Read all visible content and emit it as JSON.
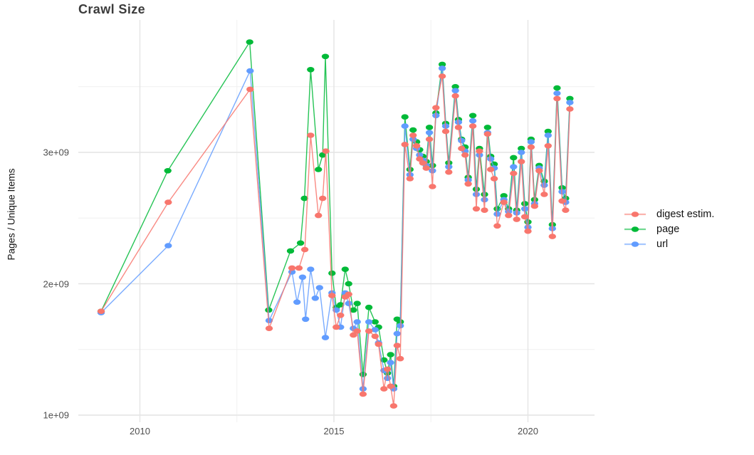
{
  "chart_data": {
    "type": "line",
    "title": "Crawl Size",
    "xlabel": "",
    "ylabel": "Pages / Unique Items",
    "values_scale": "1e9",
    "grid": true,
    "legend_position": "right",
    "xlim": [
      2008.4,
      2021.7
    ],
    "ylim_e9": [
      0.95,
      4.0
    ],
    "x_ticks": [
      {
        "value": 2010,
        "label": "2010"
      },
      {
        "value": 2015,
        "label": "2015"
      },
      {
        "value": 2020,
        "label": "2020"
      }
    ],
    "x_minor_ticks": [
      2012.5,
      2017.5
    ],
    "y_ticks": [
      {
        "value": 1,
        "label": "1e+09"
      },
      {
        "value": 2,
        "label": "2e+09"
      },
      {
        "value": 3,
        "label": "3e+09"
      }
    ],
    "y_minor_ticks": [
      1.5,
      2.5,
      3.5
    ],
    "z_order": [
      1,
      2,
      0
    ],
    "series": [
      {
        "name": "digest estim.",
        "color": "#F8766D",
        "points": [
          [
            2009.0,
            1.79
          ],
          [
            2010.73,
            2.62
          ],
          [
            2012.84,
            3.48
          ],
          [
            2013.33,
            1.66
          ],
          [
            2013.92,
            2.12
          ],
          [
            2014.1,
            2.12
          ],
          [
            2014.25,
            2.26
          ],
          [
            2014.4,
            3.13
          ],
          [
            2014.6,
            2.52
          ],
          [
            2014.71,
            2.65
          ],
          [
            2014.79,
            3.01
          ],
          [
            2014.95,
            1.91
          ],
          [
            2015.06,
            1.67
          ],
          [
            2015.17,
            1.76
          ],
          [
            2015.29,
            1.9
          ],
          [
            2015.38,
            1.92
          ],
          [
            2015.5,
            1.61
          ],
          [
            2015.6,
            1.64
          ],
          [
            2015.75,
            1.16
          ],
          [
            2015.9,
            1.64
          ],
          [
            2016.06,
            1.6
          ],
          [
            2016.15,
            1.54
          ],
          [
            2016.29,
            1.2
          ],
          [
            2016.38,
            1.35
          ],
          [
            2016.46,
            1.22
          ],
          [
            2016.54,
            1.07
          ],
          [
            2016.63,
            1.53
          ],
          [
            2016.71,
            1.43
          ],
          [
            2016.83,
            3.06
          ],
          [
            2016.96,
            2.8
          ],
          [
            2017.04,
            3.13
          ],
          [
            2017.13,
            3.05
          ],
          [
            2017.21,
            2.95
          ],
          [
            2017.29,
            2.92
          ],
          [
            2017.38,
            2.88
          ],
          [
            2017.46,
            3.1
          ],
          [
            2017.54,
            2.74
          ],
          [
            2017.63,
            3.34
          ],
          [
            2017.79,
            3.58
          ],
          [
            2017.88,
            3.16
          ],
          [
            2017.96,
            2.85
          ],
          [
            2018.13,
            3.43
          ],
          [
            2018.21,
            3.19
          ],
          [
            2018.29,
            3.03
          ],
          [
            2018.38,
            2.98
          ],
          [
            2018.46,
            2.76
          ],
          [
            2018.58,
            3.2
          ],
          [
            2018.67,
            2.57
          ],
          [
            2018.75,
            3.01
          ],
          [
            2018.88,
            2.56
          ],
          [
            2018.96,
            3.14
          ],
          [
            2019.04,
            2.87
          ],
          [
            2019.13,
            2.8
          ],
          [
            2019.21,
            2.44
          ],
          [
            2019.38,
            2.62
          ],
          [
            2019.5,
            2.52
          ],
          [
            2019.63,
            2.84
          ],
          [
            2019.71,
            2.49
          ],
          [
            2019.83,
            2.93
          ],
          [
            2019.92,
            2.51
          ],
          [
            2020.0,
            2.4
          ],
          [
            2020.08,
            3.04
          ],
          [
            2020.17,
            2.59
          ],
          [
            2020.29,
            2.86
          ],
          [
            2020.42,
            2.68
          ],
          [
            2020.52,
            3.05
          ],
          [
            2020.63,
            2.36
          ],
          [
            2020.75,
            3.41
          ],
          [
            2020.88,
            2.63
          ],
          [
            2020.97,
            2.56
          ],
          [
            2021.08,
            3.33
          ]
        ]
      },
      {
        "name": "page",
        "color": "#00BA38",
        "points": [
          [
            2009.0,
            1.79
          ],
          [
            2010.72,
            2.86
          ],
          [
            2012.83,
            3.84
          ],
          [
            2013.32,
            1.8
          ],
          [
            2013.88,
            2.25
          ],
          [
            2014.14,
            2.31
          ],
          [
            2014.24,
            2.65
          ],
          [
            2014.4,
            3.63
          ],
          [
            2014.6,
            2.87
          ],
          [
            2014.71,
            2.98
          ],
          [
            2014.78,
            3.73
          ],
          [
            2014.95,
            2.08
          ],
          [
            2015.06,
            1.82
          ],
          [
            2015.17,
            1.84
          ],
          [
            2015.29,
            2.11
          ],
          [
            2015.38,
            2.0
          ],
          [
            2015.5,
            1.8
          ],
          [
            2015.6,
            1.85
          ],
          [
            2015.75,
            1.31
          ],
          [
            2015.9,
            1.82
          ],
          [
            2016.06,
            1.71
          ],
          [
            2016.15,
            1.67
          ],
          [
            2016.29,
            1.42
          ],
          [
            2016.38,
            1.32
          ],
          [
            2016.46,
            1.46
          ],
          [
            2016.54,
            1.22
          ],
          [
            2016.63,
            1.73
          ],
          [
            2016.71,
            1.71
          ],
          [
            2016.83,
            3.27
          ],
          [
            2016.96,
            2.87
          ],
          [
            2017.04,
            3.17
          ],
          [
            2017.13,
            3.08
          ],
          [
            2017.21,
            3.02
          ],
          [
            2017.29,
            2.97
          ],
          [
            2017.38,
            2.93
          ],
          [
            2017.46,
            3.19
          ],
          [
            2017.54,
            2.9
          ],
          [
            2017.63,
            3.3
          ],
          [
            2017.79,
            3.67
          ],
          [
            2017.88,
            3.22
          ],
          [
            2017.96,
            2.92
          ],
          [
            2018.13,
            3.5
          ],
          [
            2018.21,
            3.25
          ],
          [
            2018.29,
            3.1
          ],
          [
            2018.38,
            3.04
          ],
          [
            2018.46,
            2.81
          ],
          [
            2018.58,
            3.28
          ],
          [
            2018.67,
            2.72
          ],
          [
            2018.75,
            3.03
          ],
          [
            2018.88,
            2.68
          ],
          [
            2018.96,
            3.19
          ],
          [
            2019.04,
            2.97
          ],
          [
            2019.13,
            2.91
          ],
          [
            2019.21,
            2.57
          ],
          [
            2019.38,
            2.67
          ],
          [
            2019.5,
            2.57
          ],
          [
            2019.63,
            2.96
          ],
          [
            2019.71,
            2.56
          ],
          [
            2019.83,
            3.03
          ],
          [
            2019.92,
            2.61
          ],
          [
            2020.0,
            2.47
          ],
          [
            2020.08,
            3.1
          ],
          [
            2020.17,
            2.64
          ],
          [
            2020.29,
            2.9
          ],
          [
            2020.42,
            2.78
          ],
          [
            2020.52,
            3.16
          ],
          [
            2020.63,
            2.45
          ],
          [
            2020.75,
            3.49
          ],
          [
            2020.88,
            2.73
          ],
          [
            2020.97,
            2.65
          ],
          [
            2021.08,
            3.41
          ]
        ]
      },
      {
        "name": "url",
        "color": "#619CFF",
        "points": [
          [
            2009.0,
            1.78
          ],
          [
            2010.73,
            2.29
          ],
          [
            2012.84,
            3.62
          ],
          [
            2013.33,
            1.72
          ],
          [
            2013.92,
            2.09
          ],
          [
            2014.05,
            1.86
          ],
          [
            2014.19,
            2.05
          ],
          [
            2014.27,
            1.73
          ],
          [
            2014.4,
            2.11
          ],
          [
            2014.52,
            1.89
          ],
          [
            2014.63,
            1.97
          ],
          [
            2014.78,
            1.59
          ],
          [
            2014.95,
            1.93
          ],
          [
            2015.06,
            1.8
          ],
          [
            2015.17,
            1.67
          ],
          [
            2015.29,
            1.93
          ],
          [
            2015.38,
            1.85
          ],
          [
            2015.5,
            1.66
          ],
          [
            2015.6,
            1.71
          ],
          [
            2015.75,
            1.2
          ],
          [
            2015.9,
            1.71
          ],
          [
            2016.06,
            1.65
          ],
          [
            2016.15,
            1.55
          ],
          [
            2016.29,
            1.34
          ],
          [
            2016.38,
            1.28
          ],
          [
            2016.46,
            1.4
          ],
          [
            2016.54,
            1.2
          ],
          [
            2016.63,
            1.62
          ],
          [
            2016.71,
            1.68
          ],
          [
            2016.83,
            3.2
          ],
          [
            2016.96,
            2.83
          ],
          [
            2017.04,
            3.1
          ],
          [
            2017.13,
            3.03
          ],
          [
            2017.21,
            2.98
          ],
          [
            2017.29,
            2.94
          ],
          [
            2017.38,
            2.9
          ],
          [
            2017.46,
            3.15
          ],
          [
            2017.54,
            2.86
          ],
          [
            2017.63,
            3.28
          ],
          [
            2017.79,
            3.64
          ],
          [
            2017.88,
            3.2
          ],
          [
            2017.96,
            2.89
          ],
          [
            2018.13,
            3.47
          ],
          [
            2018.21,
            3.23
          ],
          [
            2018.29,
            3.09
          ],
          [
            2018.38,
            3.01
          ],
          [
            2018.46,
            2.79
          ],
          [
            2018.58,
            3.24
          ],
          [
            2018.67,
            2.68
          ],
          [
            2018.75,
            2.98
          ],
          [
            2018.88,
            2.64
          ],
          [
            2018.96,
            3.15
          ],
          [
            2019.04,
            2.95
          ],
          [
            2019.13,
            2.88
          ],
          [
            2019.21,
            2.53
          ],
          [
            2019.38,
            2.64
          ],
          [
            2019.5,
            2.55
          ],
          [
            2019.63,
            2.89
          ],
          [
            2019.71,
            2.54
          ],
          [
            2019.83,
            3.0
          ],
          [
            2019.92,
            2.57
          ],
          [
            2020.0,
            2.43
          ],
          [
            2020.08,
            3.08
          ],
          [
            2020.17,
            2.61
          ],
          [
            2020.29,
            2.88
          ],
          [
            2020.42,
            2.75
          ],
          [
            2020.52,
            3.13
          ],
          [
            2020.63,
            2.42
          ],
          [
            2020.75,
            3.45
          ],
          [
            2020.88,
            2.7
          ],
          [
            2020.97,
            2.62
          ],
          [
            2021.08,
            3.38
          ]
        ]
      }
    ]
  }
}
